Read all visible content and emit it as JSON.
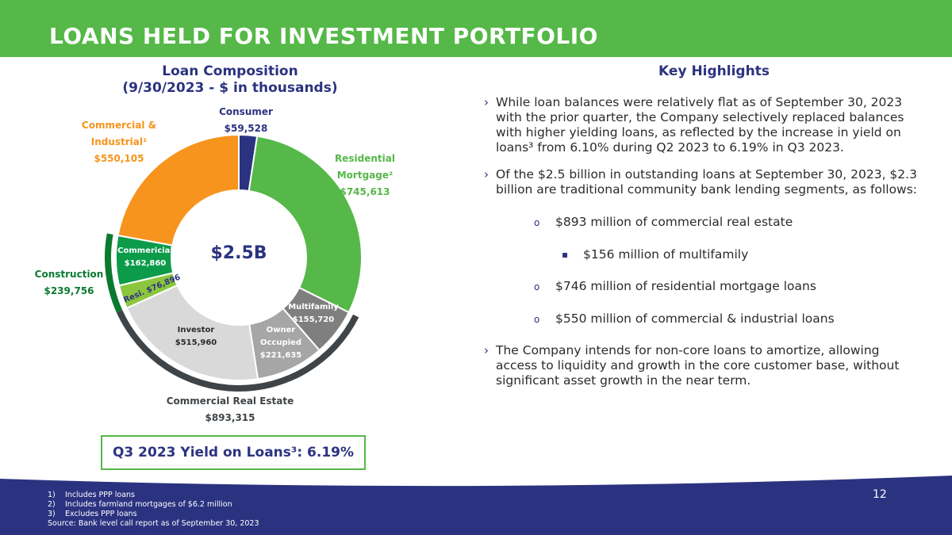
{
  "header": {
    "title": "LOANS HELD FOR INVESTMENT PORTFOLIO"
  },
  "chart_data": {
    "type": "pie",
    "title": "Loan Composition",
    "subtitle": "(9/30/2023 - $ in thousands)",
    "center_label": "$2.5B",
    "slices": [
      {
        "name": "Consumer",
        "value": 59528,
        "label": "$59,528",
        "color": "#2b3380"
      },
      {
        "name": "Residential Mortgage²",
        "value": 745613,
        "label": "$745,613",
        "color": "#55b848"
      },
      {
        "name": "Multifamily",
        "value": 155720,
        "label": "$155,720",
        "color": "#7f7f7f"
      },
      {
        "name": "Owner Occupied",
        "value": 221635,
        "label": "$221,635",
        "color": "#a6a6a6"
      },
      {
        "name": "Investor",
        "value": 515960,
        "label": "$515,960",
        "color": "#d9d9d9"
      },
      {
        "name": "Resi.",
        "value": 76896,
        "label": "$76,896",
        "color": "#8cc63f"
      },
      {
        "name": "Commericial",
        "value": 162860,
        "label": "$162,860",
        "color": "#0c9b49"
      },
      {
        "name": "Commercial & Industrial¹",
        "value": 550105,
        "label": "$550,105",
        "color": "#f7941d"
      }
    ],
    "groups": [
      {
        "name": "Construction",
        "value": 239756,
        "label": "$239,756",
        "members": [
          "Resi.",
          "Commericial"
        ],
        "color": "#0a7a2f"
      },
      {
        "name": "Commercial Real Estate",
        "value": 893315,
        "label": "$893,315",
        "members": [
          "Multifamily",
          "Owner Occupied",
          "Investor"
        ],
        "color": "#3f4448"
      }
    ]
  },
  "labels": {
    "consumer_name": "Consumer",
    "consumer_value": "$59,528",
    "ci_line1": "Commercial &",
    "ci_line2": "Industrial¹",
    "ci_value": "$550,105",
    "resi_line1": "Residential",
    "resi_line2": "Mortgage²",
    "resi_value": "$745,613",
    "construction_name": "Construction",
    "construction_value": "$239,756",
    "commericial_name": "Commericial",
    "commericial_value": "$162,860",
    "resi_small": "Resi. $76,896",
    "multifamily_name": "Multifamily",
    "multifamily_value": "$155,720",
    "owner_line1": "Owner",
    "owner_line2": "Occupied",
    "owner_value": "$221,635",
    "investor_name": "Investor",
    "investor_value": "$515,960",
    "cre_name": "Commercial Real Estate",
    "cre_value": "$893,315"
  },
  "yield_box": "Q3 2023 Yield on Loans³: 6.19%",
  "highlights": {
    "title": "Key Highlights",
    "bullet1": "While loan balances were relatively flat as of September 30, 2023 with the prior quarter, the Company selectively replaced balances with higher yielding loans, as reflected by the increase in yield on loans³ from 6.10% during Q2 2023 to 6.19% in Q3 2023.",
    "bullet2": "Of the $2.5 billion in outstanding loans at September 30, 2023, $2.3 billion are traditional community bank lending segments, as follows:",
    "sub1": "$893 million of commercial real estate",
    "sub1a": "$156 million of multifamily",
    "sub2": "$746 million of residential mortgage loans",
    "sub3": "$550 million of commercial & industrial loans",
    "bullet3": "The Company intends for non-core loans to amortize, allowing access to liquidity and growth in the core customer base, without significant asset growth in the near term.",
    "chevron": "›",
    "circle_mark": "o",
    "square_mark": "▪"
  },
  "footer": {
    "notes": [
      {
        "num": "1)",
        "text": "Includes PPP loans"
      },
      {
        "num": "2)",
        "text": "Includes farmland mortgages of $6.2 million"
      },
      {
        "num": "3)",
        "text": "Excludes PPP loans"
      }
    ],
    "source": "Source: Bank level call report as of September 30, 2023",
    "page": "12"
  },
  "colors": {
    "brand_green": "#55b848",
    "navy": "#2b3380",
    "orange": "#f7941d",
    "dark_green": "#0a7a2f"
  }
}
